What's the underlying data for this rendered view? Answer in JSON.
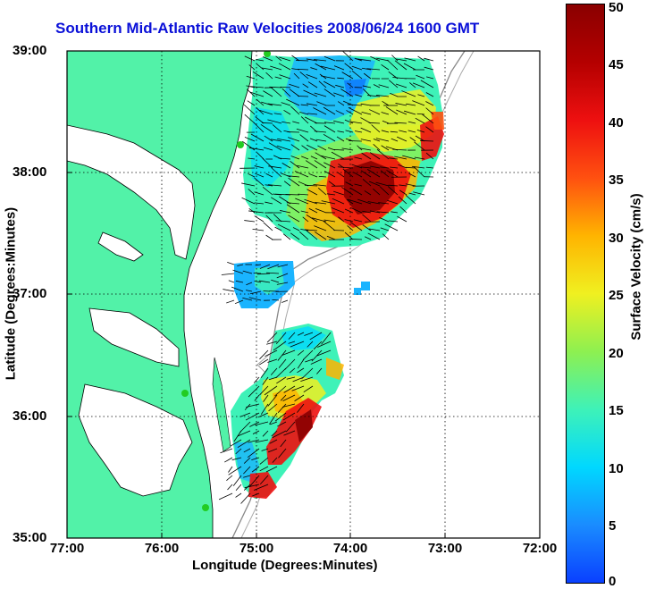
{
  "title": "Southern Mid-Atlantic Raw Velocities 2008/06/24 1600 GMT",
  "axes": {
    "xlabel": "Longitude (Degrees:Minutes)",
    "ylabel": "Latitude (Degrees:Minutes)",
    "xticks": [
      "77:00",
      "76:00",
      "75:00",
      "74:00",
      "73:00",
      "72:00"
    ],
    "yticks": [
      "39:00",
      "38:00",
      "37:00",
      "36:00",
      "35:00"
    ]
  },
  "colorbar": {
    "label": "Surface Velocity (cm/s)",
    "ticks": [
      "50",
      "45",
      "40",
      "35",
      "30",
      "25",
      "20",
      "15",
      "10",
      "5",
      "0"
    ]
  },
  "colors": {
    "land": "#52f2a8",
    "title": "#0a10d8",
    "vector": "#000000",
    "station": "#22cc22"
  }
}
